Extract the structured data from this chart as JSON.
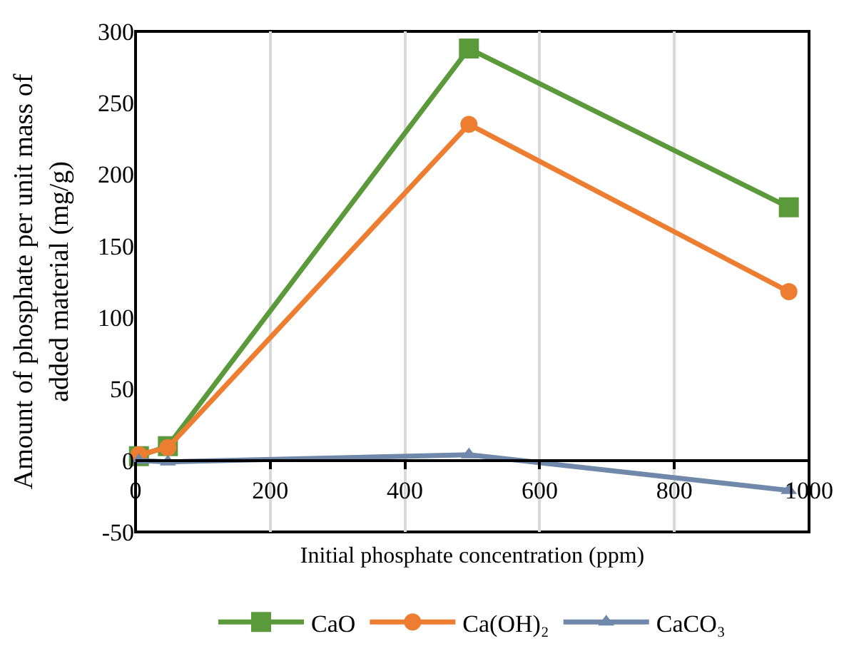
{
  "chart_data": {
    "type": "line",
    "xlabel": "Initial phosphate concentration (ppm)",
    "ylabel": "Amount of phosphate per unit mass of\nadded material (mg/g)",
    "x": [
      5,
      48,
      495,
      970
    ],
    "series": [
      {
        "name": "CaO",
        "color": "#5b9a3b",
        "marker": "square",
        "values": [
          3,
          10,
          288,
          177
        ]
      },
      {
        "name": "Ca(OH)₂",
        "color": "#ed7d31",
        "marker": "circle",
        "values": [
          4,
          9,
          235,
          118
        ]
      },
      {
        "name": "CaCO₃",
        "color": "#7088aa",
        "marker": "triangle",
        "values": [
          0,
          -1,
          4,
          -21
        ]
      }
    ],
    "xlim": [
      0,
      1000
    ],
    "xticks": [
      0,
      200,
      400,
      600,
      800,
      1000
    ],
    "ylim": [
      -50,
      300
    ],
    "yticks": [
      -50,
      0,
      50,
      100,
      150,
      200,
      250,
      300
    ],
    "grid": "x",
    "legend": "bottom",
    "line_style": "solid"
  }
}
